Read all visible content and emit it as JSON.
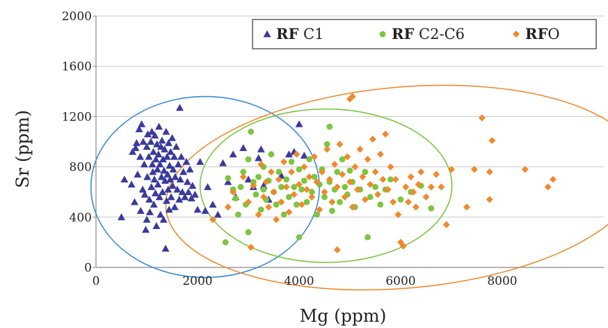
{
  "chart_data": {
    "type": "scatter",
    "xlabel": "Mg (ppm)",
    "ylabel": "Sr (ppm)",
    "xlim": [
      0,
      10000
    ],
    "ylim": [
      0,
      2000
    ],
    "x_ticks": [
      "0",
      "2000",
      "4000",
      "6000",
      "8000"
    ],
    "y_ticks": [
      "0",
      "400",
      "800",
      "1200",
      "1600",
      "2000"
    ],
    "grid": "horizontal",
    "legend_position": "top-right",
    "series": [
      {
        "name_bold": "RF",
        "name_rest": " C1",
        "marker": "triangle",
        "color": "#3a3a9c",
        "points": [
          [
            500,
            400
          ],
          [
            560,
            700
          ],
          [
            700,
            660
          ],
          [
            720,
            920
          ],
          [
            760,
            520
          ],
          [
            780,
            950
          ],
          [
            800,
            990
          ],
          [
            820,
            740
          ],
          [
            850,
            1100
          ],
          [
            870,
            880
          ],
          [
            880,
            450
          ],
          [
            900,
            1140
          ],
          [
            920,
            620
          ],
          [
            930,
            1000
          ],
          [
            950,
            820
          ],
          [
            960,
            580
          ],
          [
            980,
            300
          ],
          [
            1000,
            380
          ],
          [
            1000,
            960
          ],
          [
            1010,
            720
          ],
          [
            1020,
            1060
          ],
          [
            1040,
            880
          ],
          [
            1050,
            540
          ],
          [
            1060,
            440
          ],
          [
            1080,
            1000
          ],
          [
            1090,
            640
          ],
          [
            1100,
            1080
          ],
          [
            1110,
            820
          ],
          [
            1120,
            760
          ],
          [
            1130,
            920
          ],
          [
            1140,
            500
          ],
          [
            1150,
            700
          ],
          [
            1160,
            1050
          ],
          [
            1170,
            590
          ],
          [
            1180,
            860
          ],
          [
            1190,
            330
          ],
          [
            1200,
            980
          ],
          [
            1210,
            780
          ],
          [
            1220,
            660
          ],
          [
            1230,
            900
          ],
          [
            1240,
            1120
          ],
          [
            1250,
            560
          ],
          [
            1260,
            820
          ],
          [
            1270,
            420
          ],
          [
            1280,
            960
          ],
          [
            1290,
            720
          ],
          [
            1300,
            1010
          ],
          [
            1310,
            600
          ],
          [
            1320,
            860
          ],
          [
            1330,
            380
          ],
          [
            1340,
            770
          ],
          [
            1350,
            940
          ],
          [
            1360,
            690
          ],
          [
            1370,
            150
          ],
          [
            1380,
            1080
          ],
          [
            1390,
            530
          ],
          [
            1400,
            880
          ],
          [
            1410,
            740
          ],
          [
            1420,
            620
          ],
          [
            1430,
            990
          ],
          [
            1440,
            460
          ],
          [
            1450,
            810
          ],
          [
            1460,
            700
          ],
          [
            1470,
            920
          ],
          [
            1480,
            560
          ],
          [
            1500,
            1030
          ],
          [
            1510,
            650
          ],
          [
            1520,
            780
          ],
          [
            1540,
            880
          ],
          [
            1550,
            480
          ],
          [
            1560,
            720
          ],
          [
            1580,
            960
          ],
          [
            1600,
            620
          ],
          [
            1620,
            820
          ],
          [
            1640,
            540
          ],
          [
            1650,
            1270
          ],
          [
            1660,
            700
          ],
          [
            1680,
            880
          ],
          [
            1700,
            600
          ],
          [
            1720,
            760
          ],
          [
            1750,
            560
          ],
          [
            1780,
            840
          ],
          [
            1800,
            680
          ],
          [
            1820,
            600
          ],
          [
            1850,
            780
          ],
          [
            1880,
            550
          ],
          [
            1900,
            650
          ],
          [
            1950,
            580
          ],
          [
            2000,
            460
          ],
          [
            2050,
            840
          ],
          [
            2150,
            450
          ],
          [
            2200,
            640
          ],
          [
            2300,
            500
          ],
          [
            2400,
            420
          ],
          [
            2500,
            830
          ],
          [
            2600,
            680
          ],
          [
            2700,
            900
          ],
          [
            2750,
            560
          ],
          [
            2900,
            950
          ],
          [
            3000,
            700
          ],
          [
            3100,
            640
          ],
          [
            3200,
            870
          ],
          [
            3250,
            940
          ],
          [
            3300,
            650
          ],
          [
            3400,
            540
          ],
          [
            3650,
            730
          ],
          [
            3800,
            900
          ],
          [
            3900,
            920
          ],
          [
            4000,
            1140
          ],
          [
            4100,
            890
          ]
        ]
      },
      {
        "name_bold": "RF",
        "name_rest": " C2-C6",
        "marker": "circle",
        "color": "#7cc540",
        "points": [
          [
            2550,
            200
          ],
          [
            2600,
            710
          ],
          [
            2700,
            620
          ],
          [
            2750,
            550
          ],
          [
            2800,
            420
          ],
          [
            2850,
            640
          ],
          [
            2900,
            760
          ],
          [
            2950,
            500
          ],
          [
            3000,
            860
          ],
          [
            3000,
            280
          ],
          [
            3050,
            1080
          ],
          [
            3100,
            680
          ],
          [
            3150,
            580
          ],
          [
            3200,
            720
          ],
          [
            3250,
            460
          ],
          [
            3300,
            800
          ],
          [
            3300,
            620
          ],
          [
            3350,
            540
          ],
          [
            3400,
            690
          ],
          [
            3450,
            900
          ],
          [
            3500,
            600
          ],
          [
            3550,
            500
          ],
          [
            3600,
            760
          ],
          [
            3650,
            640
          ],
          [
            3700,
            420
          ],
          [
            3750,
            700
          ],
          [
            3800,
            560
          ],
          [
            3850,
            840
          ],
          [
            3900,
            640
          ],
          [
            3950,
            500
          ],
          [
            4000,
            780
          ],
          [
            4000,
            240
          ],
          [
            4050,
            620
          ],
          [
            4100,
            690
          ],
          [
            4150,
            520
          ],
          [
            4200,
            860
          ],
          [
            4250,
            600
          ],
          [
            4300,
            720
          ],
          [
            4350,
            420
          ],
          [
            4400,
            660
          ],
          [
            4450,
            780
          ],
          [
            4500,
            560
          ],
          [
            4550,
            980
          ],
          [
            4600,
            680
          ],
          [
            4600,
            1120
          ],
          [
            4650,
            450
          ],
          [
            4700,
            620
          ],
          [
            4750,
            760
          ],
          [
            4800,
            520
          ],
          [
            4850,
            860
          ],
          [
            4900,
            640
          ],
          [
            4950,
            580
          ],
          [
            5000,
            770
          ],
          [
            5050,
            680
          ],
          [
            5100,
            480
          ],
          [
            5200,
            620
          ],
          [
            5300,
            760
          ],
          [
            5350,
            240
          ],
          [
            5400,
            560
          ],
          [
            5500,
            640
          ],
          [
            5600,
            500
          ],
          [
            5700,
            620
          ],
          [
            5800,
            700
          ],
          [
            6000,
            540
          ],
          [
            6200,
            600
          ],
          [
            6400,
            650
          ],
          [
            6600,
            470
          ]
        ]
      },
      {
        "name_bold": "RF",
        "name_rest": "O",
        "marker": "diamond",
        "color": "#ef8a2c",
        "points": [
          [
            2300,
            380
          ],
          [
            2600,
            480
          ],
          [
            2700,
            600
          ],
          [
            2900,
            720
          ],
          [
            3000,
            520
          ],
          [
            3050,
            160
          ],
          [
            3100,
            650
          ],
          [
            3200,
            420
          ],
          [
            3250,
            820
          ],
          [
            3300,
            560
          ],
          [
            3350,
            680
          ],
          [
            3400,
            480
          ],
          [
            3450,
            760
          ],
          [
            3500,
            600
          ],
          [
            3550,
            380
          ],
          [
            3600,
            700
          ],
          [
            3650,
            520
          ],
          [
            3700,
            840
          ],
          [
            3750,
            640
          ],
          [
            3800,
            440
          ],
          [
            3850,
            760
          ],
          [
            3900,
            580
          ],
          [
            3950,
            900
          ],
          [
            4000,
            660
          ],
          [
            4050,
            500
          ],
          [
            4100,
            800
          ],
          [
            4150,
            620
          ],
          [
            4200,
            720
          ],
          [
            4250,
            560
          ],
          [
            4300,
            880
          ],
          [
            4350,
            680
          ],
          [
            4400,
            460
          ],
          [
            4450,
            760
          ],
          [
            4500,
            600
          ],
          [
            4550,
            940
          ],
          [
            4600,
            700
          ],
          [
            4650,
            520
          ],
          [
            4700,
            820
          ],
          [
            4750,
            140
          ],
          [
            4750,
            640
          ],
          [
            4800,
            980
          ],
          [
            4850,
            740
          ],
          [
            4900,
            560
          ],
          [
            4950,
            880
          ],
          [
            5000,
            1340
          ],
          [
            5000,
            680
          ],
          [
            5050,
            1360
          ],
          [
            5050,
            480
          ],
          [
            5100,
            800
          ],
          [
            5150,
            620
          ],
          [
            5200,
            940
          ],
          [
            5250,
            720
          ],
          [
            5300,
            540
          ],
          [
            5350,
            860
          ],
          [
            5400,
            660
          ],
          [
            5450,
            1020
          ],
          [
            5500,
            760
          ],
          [
            5550,
            580
          ],
          [
            5600,
            900
          ],
          [
            5650,
            700
          ],
          [
            5700,
            1060
          ],
          [
            5750,
            620
          ],
          [
            5800,
            800
          ],
          [
            5850,
            520
          ],
          [
            5900,
            700
          ],
          [
            5950,
            420
          ],
          [
            6000,
            200
          ],
          [
            6050,
            170
          ],
          [
            6100,
            640
          ],
          [
            6150,
            520
          ],
          [
            6200,
            720
          ],
          [
            6250,
            600
          ],
          [
            6300,
            480
          ],
          [
            6350,
            660
          ],
          [
            6400,
            760
          ],
          [
            6500,
            560
          ],
          [
            6600,
            640
          ],
          [
            6700,
            740
          ],
          [
            6800,
            640
          ],
          [
            6900,
            340
          ],
          [
            7000,
            780
          ],
          [
            7300,
            480
          ],
          [
            7450,
            780
          ],
          [
            7600,
            1190
          ],
          [
            7800,
            1010
          ],
          [
            7750,
            760
          ],
          [
            7750,
            540
          ],
          [
            8450,
            780
          ],
          [
            8900,
            640
          ],
          [
            9000,
            700
          ]
        ]
      }
    ],
    "ellipses": [
      {
        "series": 0,
        "color": "#3a8ad6",
        "cx": 2150,
        "cy": 640,
        "rx": 2250,
        "ry": 720
      },
      {
        "series": 1,
        "color": "#7cc540",
        "cx": 4530,
        "cy": 650,
        "rx": 2480,
        "ry": 610
      },
      {
        "series": 2,
        "color": "#ef8a2c",
        "cx": 6060,
        "cy": 635,
        "rx": 4700,
        "ry": 800,
        "rotate": -5
      }
    ]
  }
}
